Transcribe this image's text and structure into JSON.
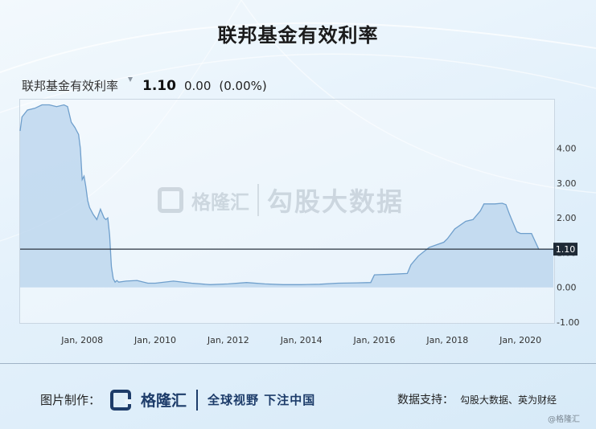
{
  "title": "联邦基金有效利率",
  "quote": {
    "name": "联邦基金有效利率",
    "value": "1.10",
    "change": "0.00",
    "change_pct": "(0.00%)"
  },
  "watermark": {
    "brand": "格隆汇",
    "text": "勾股大数据"
  },
  "footer": {
    "made_by_label": "图片制作：",
    "brand": "格隆汇",
    "slogan": "全球视野 下注中国",
    "source_label": "数据支持：",
    "source": "勾股大数据、英为财经",
    "credit": "@格隆汇"
  },
  "chart_data": {
    "type": "area",
    "title": "",
    "xlabel": "",
    "ylabel": "",
    "xlim": [
      2006.3,
      2020.9
    ],
    "ylim": [
      -1.0,
      5.4
    ],
    "y_ticks": [
      "4.00",
      "3.00",
      "2.00",
      "1.00",
      "0.00",
      "-1.00"
    ],
    "x_ticks": [
      {
        "label": "Jan, 2008",
        "value": 2008.0
      },
      {
        "label": "Jan, 2010",
        "value": 2010.0
      },
      {
        "label": "Jan, 2012",
        "value": 2012.0
      },
      {
        "label": "Jan, 2014",
        "value": 2014.0
      },
      {
        "label": "Jan, 2016",
        "value": 2016.0
      },
      {
        "label": "Jan, 2018",
        "value": 2018.0
      },
      {
        "label": "Jan, 2020",
        "value": 2020.0
      }
    ],
    "current_value": 1.1,
    "current_label": "1.10",
    "colors": {
      "line": "#6f9fcc",
      "fill": "#b7d3ec",
      "ref_line": "#2b3440",
      "label_bg": "#1f2a36"
    },
    "series": [
      {
        "x": [
          2006.3,
          2006.35,
          2006.5,
          2006.7,
          2006.9,
          2007.1,
          2007.3,
          2007.5,
          2007.6,
          2007.7,
          2007.8,
          2007.85,
          2007.9,
          2007.95,
          2008.0,
          2008.05,
          2008.1,
          2008.15,
          2008.2,
          2008.3,
          2008.4,
          2008.5,
          2008.6,
          2008.65,
          2008.7,
          2008.75,
          2008.8,
          2008.85,
          2008.9,
          2008.95,
          2009.0,
          2009.2,
          2009.5,
          2009.8,
          2010.0,
          2010.5,
          2011.0,
          2011.5,
          2012.0,
          2012.5,
          2013.0,
          2013.5,
          2014.0,
          2014.5,
          2015.0,
          2015.5,
          2015.9,
          2016.0,
          2016.5,
          2016.9,
          2017.0,
          2017.2,
          2017.5,
          2017.9,
          2018.0,
          2018.2,
          2018.5,
          2018.7,
          2018.9,
          2019.0,
          2019.3,
          2019.5,
          2019.6,
          2019.7,
          2019.8,
          2019.9,
          2020.0,
          2020.1,
          2020.3,
          2020.5,
          2020.9
        ],
        "values": [
          4.5,
          4.9,
          5.1,
          5.15,
          5.25,
          5.25,
          5.2,
          5.25,
          5.2,
          4.75,
          4.6,
          4.5,
          4.4,
          4.0,
          3.1,
          3.2,
          2.9,
          2.5,
          2.3,
          2.1,
          1.95,
          2.25,
          2.0,
          1.95,
          2.0,
          1.5,
          0.6,
          0.25,
          0.15,
          0.2,
          0.15,
          0.18,
          0.2,
          0.12,
          0.12,
          0.18,
          0.12,
          0.08,
          0.1,
          0.14,
          0.1,
          0.08,
          0.08,
          0.09,
          0.12,
          0.13,
          0.14,
          0.36,
          0.38,
          0.4,
          0.65,
          0.9,
          1.15,
          1.3,
          1.4,
          1.68,
          1.9,
          1.95,
          2.2,
          2.4,
          2.4,
          2.42,
          2.38,
          2.1,
          1.85,
          1.6,
          1.55,
          1.55,
          1.55,
          1.1,
          1.1
        ]
      }
    ]
  }
}
